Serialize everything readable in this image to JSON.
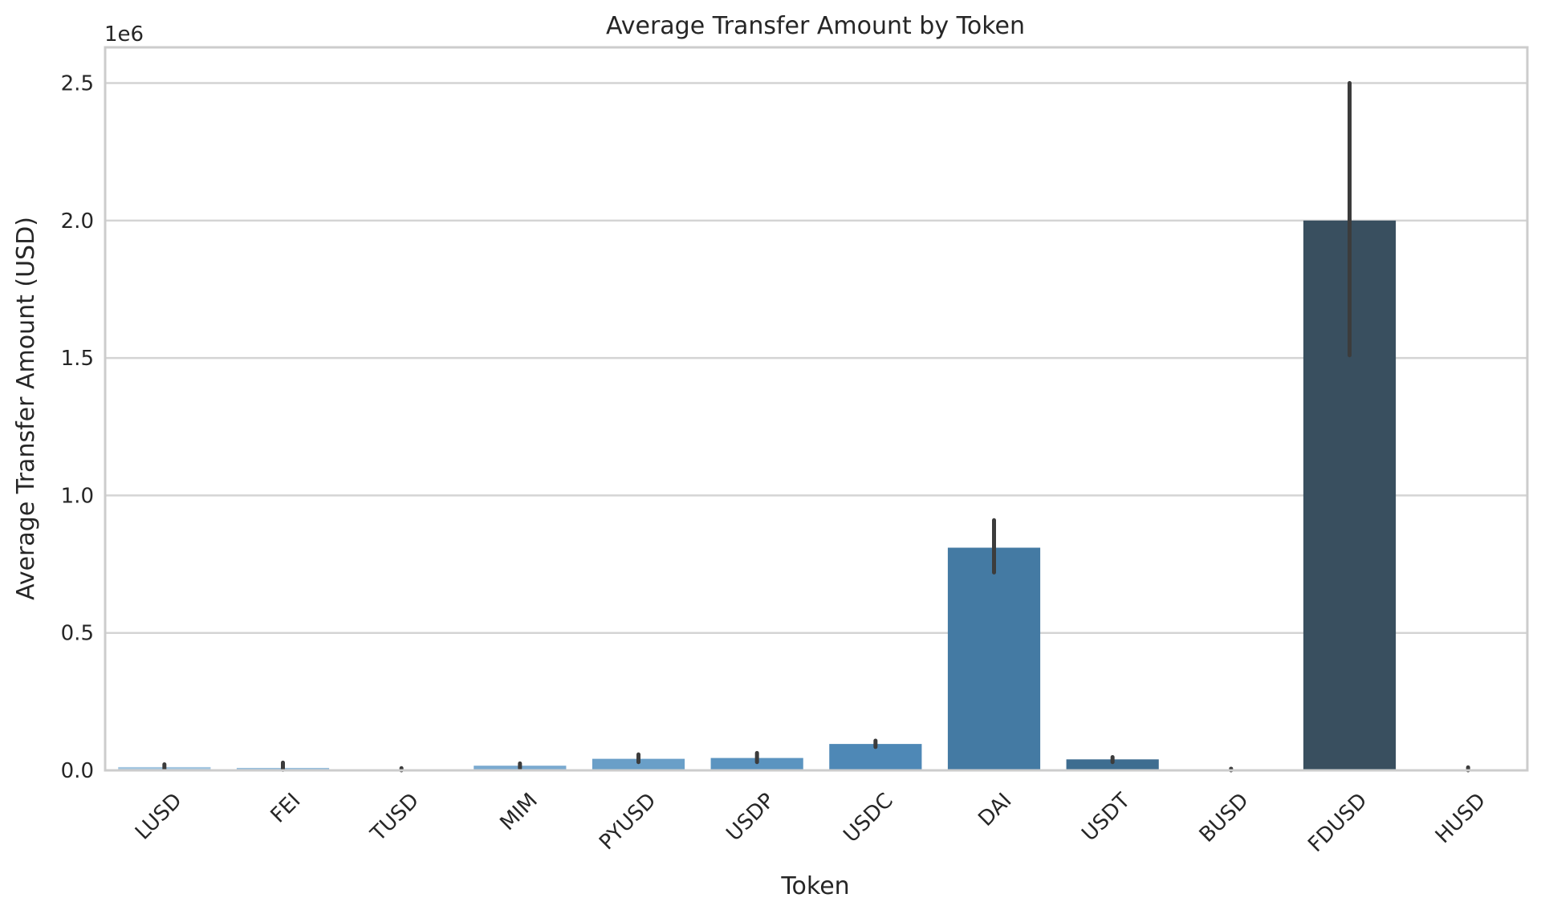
{
  "chart_data": {
    "type": "bar",
    "title": "Average Transfer Amount by Token",
    "xlabel": "Token",
    "ylabel": "Average Transfer Amount (USD)",
    "y_scale_label": "1e6",
    "ylim": [
      0,
      2630000
    ],
    "y_ticks": [
      0,
      500000,
      1000000,
      1500000,
      2000000,
      2500000
    ],
    "y_tick_labels": [
      "0.0",
      "0.5",
      "1.0",
      "1.5",
      "2.0",
      "2.5"
    ],
    "grid": "horizontal",
    "categories": [
      "LUSD",
      "FEI",
      "TUSD",
      "MIM",
      "PYUSD",
      "USDP",
      "USDC",
      "DAI",
      "USDT",
      "BUSD",
      "FDUSD",
      "HUSD"
    ],
    "values": [
      12000,
      9000,
      3000,
      17000,
      42000,
      45000,
      96000,
      810000,
      40000,
      2000,
      2000000,
      3000
    ],
    "error_low": [
      5000,
      2000,
      0,
      8000,
      30000,
      30000,
      85000,
      720000,
      30000,
      0,
      1510000,
      0
    ],
    "error_high": [
      22000,
      28000,
      8000,
      25000,
      58000,
      63000,
      108000,
      910000,
      48000,
      6000,
      2500000,
      11000
    ],
    "colors": [
      "#a3c6e0",
      "#97bedb",
      "#8ab5d6",
      "#7aaad0",
      "#6a9fc8",
      "#5b94c0",
      "#4e88b6",
      "#447aa3",
      "#3e6d90",
      "#3b627f",
      "#394f5f",
      "#3a4650"
    ]
  }
}
